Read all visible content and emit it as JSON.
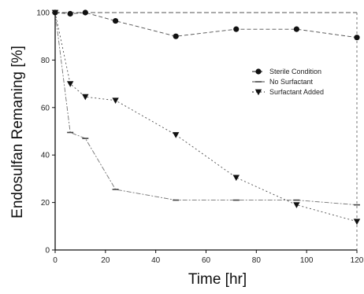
{
  "chart_data": {
    "type": "line",
    "xlabel": "Time [hr]",
    "ylabel": "Endosulfan Remaning [%]",
    "xlim": [
      0,
      120
    ],
    "ylim": [
      0,
      100
    ],
    "x_ticks": [
      0,
      20,
      40,
      60,
      80,
      100,
      120
    ],
    "x_tick_labels": [
      "0",
      "20",
      "40",
      "60",
      "80",
      "100",
      "120"
    ],
    "y_ticks": [
      0,
      20,
      40,
      60,
      80,
      100
    ],
    "y_tick_labels": [
      "0",
      "20",
      "40",
      "60",
      "80",
      "100"
    ],
    "grid": false,
    "legend_position": "upper-right",
    "series": [
      {
        "name": "Sterile Condition",
        "marker": "circle",
        "color": "#111111",
        "x": [
          0,
          6,
          12,
          24,
          48,
          72,
          96,
          120
        ],
        "y": [
          100,
          99.5,
          100,
          96.5,
          90,
          93,
          93,
          89.5
        ]
      },
      {
        "name": "No Surfactant",
        "marker": "dash",
        "color": "#444444",
        "x": [
          0,
          6,
          12,
          24,
          48,
          72,
          96,
          120
        ],
        "y": [
          100,
          49.5,
          47,
          25.5,
          21,
          21,
          21,
          19
        ]
      },
      {
        "name": "Surfactant Added",
        "marker": "triangle-down",
        "color": "#111111",
        "x": [
          0,
          6,
          12,
          24,
          48,
          72,
          96,
          120
        ],
        "y": [
          100,
          70,
          64.5,
          63,
          48.5,
          30.5,
          19,
          12
        ]
      }
    ]
  }
}
